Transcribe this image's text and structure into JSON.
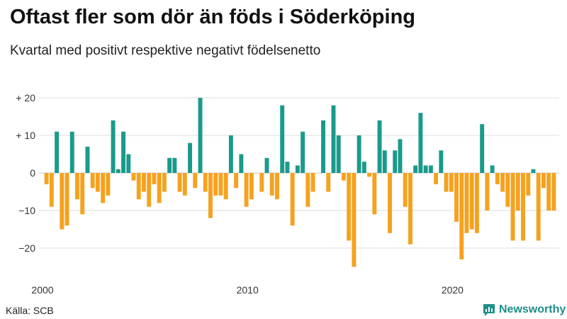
{
  "header": {
    "title": "Oftast fler som dör än föds i Söderköping",
    "subtitle": "Kvartal med positivt respektive negativt födelsenetto"
  },
  "footer": {
    "source": "Källa: SCB",
    "brand": "Newsworthy"
  },
  "colors": {
    "positive": "#1a9a8b",
    "negative": "#f5a21f",
    "grid": "#dddddd",
    "brand": "#1e8f88"
  },
  "chart_data": {
    "type": "bar",
    "title": "Oftast fler som dör än föds i Söderköping",
    "subtitle": "Kvartal med positivt respektive negativt födelsenetto",
    "xlabel": "",
    "ylabel": "",
    "start_year": 2000,
    "periods_per_year": 4,
    "ylim": [
      -27,
      22
    ],
    "yticks": [
      20,
      10,
      0,
      -10,
      -20
    ],
    "ytick_labels": [
      "+ 20",
      "+ 10",
      "0",
      "−10",
      "−20"
    ],
    "xticks": [
      {
        "label": "2000",
        "year": 2000
      },
      {
        "label": "2010",
        "year": 2010
      },
      {
        "label": "2020",
        "year": 2020
      }
    ],
    "values": [
      -3,
      -9,
      11,
      -15,
      -14,
      11,
      -7,
      -11,
      7,
      -4,
      -5,
      -8,
      -6,
      14,
      1,
      11,
      5,
      -2,
      -7,
      -5,
      -9,
      -3,
      -8,
      -5,
      4,
      4,
      -5,
      -6,
      8,
      -4,
      20,
      -5,
      -12,
      -6,
      -6,
      -7,
      10,
      -4,
      5,
      -9,
      -7,
      0,
      -5,
      4,
      -6,
      -7,
      18,
      3,
      -14,
      2,
      11,
      -9,
      -5,
      0,
      14,
      -5,
      18,
      10,
      -2,
      -18,
      -25,
      10,
      3,
      -1,
      -11,
      14,
      6,
      -16,
      6,
      9,
      -9,
      -19,
      2,
      16,
      2,
      2,
      -3,
      6,
      -5,
      -5,
      -13,
      -23,
      -16,
      -15,
      -16,
      13,
      -10,
      2,
      -3,
      -5,
      -9,
      -18,
      -10,
      -18,
      -6,
      1,
      -18,
      -4,
      -10,
      -10
    ]
  }
}
